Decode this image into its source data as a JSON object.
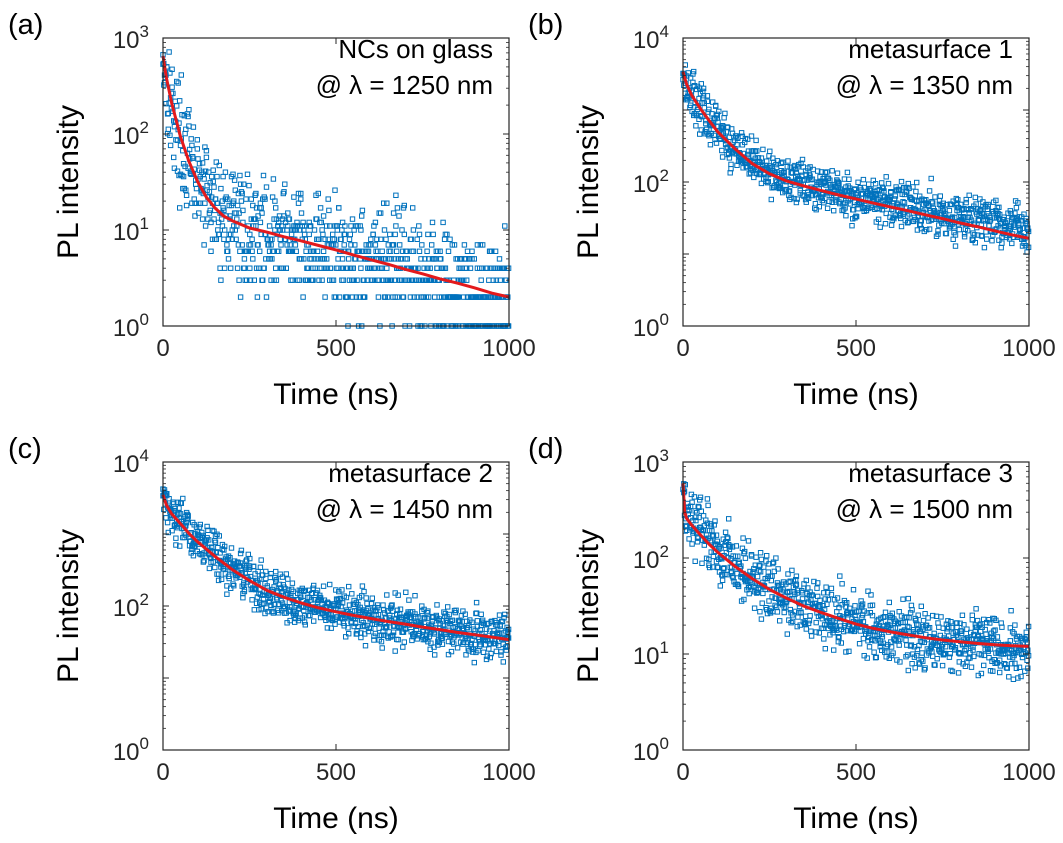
{
  "chart_data": [
    {
      "type": "scatter",
      "panel_label": "(a)",
      "annotation": [
        "NCs on glass",
        "@ λ = 1250 nm"
      ],
      "xlabel": "Time (ns)",
      "ylabel": "PL intensity",
      "xlim": [
        0,
        1000
      ],
      "ylim": [
        1,
        1000
      ],
      "yscale": "log",
      "xticks": [
        "0",
        "500",
        "1000"
      ],
      "yticks": [
        {
          "base": "10",
          "exp": "0"
        },
        {
          "base": "10",
          "exp": "1"
        },
        {
          "base": "10",
          "exp": "2"
        },
        {
          "base": "10",
          "exp": "3"
        }
      ],
      "series": [
        {
          "kind": "measured",
          "marker": "square-open",
          "color": "#0072BD",
          "x": [
            0,
            5,
            15,
            30,
            50,
            75,
            100,
            125,
            150,
            175,
            200,
            230,
            260,
            300,
            350,
            400,
            450,
            500,
            550,
            600,
            650,
            700,
            750,
            800,
            850,
            900,
            950,
            1000
          ],
          "y": [
            650,
            500,
            300,
            160,
            90,
            48,
            30,
            22,
            17,
            14,
            12,
            10,
            9.5,
            8.8,
            8,
            7.3,
            6.6,
            6,
            5.4,
            4.9,
            4.4,
            4,
            3.6,
            3.2,
            2.9,
            2.6,
            2.3,
            2.1
          ]
        },
        {
          "kind": "fit",
          "color": "#E31A1C",
          "x": [
            0,
            10,
            25,
            50,
            75,
            100,
            125,
            150,
            175,
            200,
            250,
            300,
            350,
            400,
            450,
            500,
            550,
            600,
            650,
            700,
            750,
            800,
            850,
            900,
            950,
            1000
          ],
          "y": [
            650,
            380,
            210,
            95,
            52,
            32,
            22,
            17,
            14,
            12.5,
            10.5,
            9.5,
            8.5,
            7.7,
            6.9,
            6.2,
            5.5,
            4.9,
            4.4,
            3.9,
            3.5,
            3.1,
            2.8,
            2.5,
            2.2,
            2.0
          ]
        }
      ]
    },
    {
      "type": "scatter",
      "panel_label": "(b)",
      "annotation": [
        "metasurface 1",
        "@ λ = 1350 nm"
      ],
      "xlabel": "Time (ns)",
      "ylabel": "PL intensity",
      "xlim": [
        0,
        1000
      ],
      "ylim": [
        1,
        10000
      ],
      "yscale": "log",
      "xticks": [
        "0",
        "500",
        "1000"
      ],
      "yticks": [
        {
          "base": "10",
          "exp": "0"
        },
        {
          "base": "10",
          "exp": "2"
        },
        {
          "base": "10",
          "exp": "4"
        }
      ],
      "series": [
        {
          "kind": "measured",
          "marker": "square-open",
          "color": "#0072BD",
          "x": [
            0,
            10,
            25,
            50,
            75,
            100,
            150,
            200,
            250,
            300,
            350,
            400,
            450,
            500,
            550,
            600,
            650,
            700,
            750,
            800,
            850,
            900,
            950,
            1000
          ],
          "y": [
            3600,
            2400,
            1700,
            1100,
            750,
            520,
            300,
            190,
            140,
            110,
            95,
            82,
            72,
            64,
            57,
            51,
            46,
            41,
            37,
            33,
            30,
            27,
            24,
            22
          ]
        },
        {
          "kind": "fit",
          "color": "#E31A1C",
          "x": [
            0,
            10,
            25,
            50,
            75,
            100,
            150,
            200,
            250,
            300,
            350,
            400,
            450,
            500,
            550,
            600,
            650,
            700,
            750,
            800,
            850,
            900,
            950,
            1000
          ],
          "y": [
            3400,
            2300,
            1600,
            1050,
            720,
            500,
            290,
            180,
            130,
            103,
            88,
            76,
            66,
            58,
            51,
            45,
            40,
            35,
            31,
            27,
            24,
            21,
            18.5,
            16.5
          ]
        }
      ]
    },
    {
      "type": "scatter",
      "panel_label": "(c)",
      "annotation": [
        "metasurface 2",
        "@ λ = 1450 nm"
      ],
      "xlabel": "Time (ns)",
      "ylabel": "PL intensity",
      "xlim": [
        0,
        1000
      ],
      "ylim": [
        1,
        10000
      ],
      "yscale": "log",
      "xticks": [
        "0",
        "500",
        "1000"
      ],
      "yticks": [
        {
          "base": "10",
          "exp": "0"
        },
        {
          "base": "10",
          "exp": "2"
        },
        {
          "base": "10",
          "exp": "4"
        }
      ],
      "series": [
        {
          "kind": "measured",
          "marker": "square-open",
          "color": "#0072BD",
          "x": [
            0,
            10,
            25,
            50,
            75,
            100,
            150,
            200,
            250,
            300,
            350,
            400,
            450,
            500,
            550,
            600,
            650,
            700,
            750,
            800,
            850,
            900,
            950,
            1000
          ],
          "y": [
            3800,
            2600,
            2000,
            1450,
            1050,
            800,
            500,
            330,
            230,
            170,
            135,
            112,
            96,
            85,
            76,
            69,
            63,
            58,
            53,
            49,
            45,
            42,
            39,
            37
          ]
        },
        {
          "kind": "fit",
          "color": "#E31A1C",
          "x": [
            0,
            10,
            25,
            50,
            75,
            100,
            150,
            200,
            250,
            300,
            350,
            400,
            450,
            500,
            550,
            600,
            650,
            700,
            750,
            800,
            850,
            900,
            950,
            1000
          ],
          "y": [
            3500,
            2500,
            1900,
            1400,
            1020,
            780,
            490,
            320,
            225,
            165,
            132,
            110,
            94,
            83,
            74,
            67,
            61,
            56,
            51,
            47,
            43,
            40,
            37,
            34
          ]
        }
      ]
    },
    {
      "type": "scatter",
      "panel_label": "(d)",
      "annotation": [
        "metasurface 3",
        "@ λ = 1500 nm"
      ],
      "xlabel": "Time (ns)",
      "ylabel": "PL intensity",
      "xlim": [
        0,
        1000
      ],
      "ylim": [
        1,
        1000
      ],
      "yscale": "log",
      "xticks": [
        "0",
        "500",
        "1000"
      ],
      "yticks": [
        {
          "base": "10",
          "exp": "0"
        },
        {
          "base": "10",
          "exp": "1"
        },
        {
          "base": "10",
          "exp": "2"
        },
        {
          "base": "10",
          "exp": "3"
        }
      ],
      "series": [
        {
          "kind": "measured",
          "marker": "square-open",
          "color": "#0072BD",
          "x": [
            0,
            5,
            10,
            25,
            50,
            75,
            100,
            150,
            200,
            250,
            300,
            350,
            400,
            450,
            500,
            550,
            600,
            650,
            700,
            750,
            800,
            850,
            900,
            950,
            1000
          ],
          "y": [
            650,
            330,
            290,
            240,
            190,
            155,
            125,
            90,
            66,
            50,
            40,
            33,
            28,
            24,
            21,
            19,
            17.5,
            16,
            15,
            14,
            13.5,
            13,
            12.5,
            12,
            11.5
          ]
        },
        {
          "kind": "fit",
          "color": "#E31A1C",
          "x": [
            0,
            5,
            10,
            25,
            50,
            75,
            100,
            150,
            200,
            250,
            300,
            350,
            400,
            450,
            500,
            550,
            600,
            650,
            700,
            750,
            800,
            850,
            900,
            950,
            1000
          ],
          "y": [
            600,
            300,
            260,
            220,
            175,
            140,
            115,
            82,
            61,
            47,
            38,
            31.5,
            27,
            23.5,
            20.5,
            18.5,
            17,
            15.8,
            14.8,
            14,
            13.4,
            12.9,
            12.5,
            12.2,
            12.0
          ]
        }
      ]
    }
  ]
}
